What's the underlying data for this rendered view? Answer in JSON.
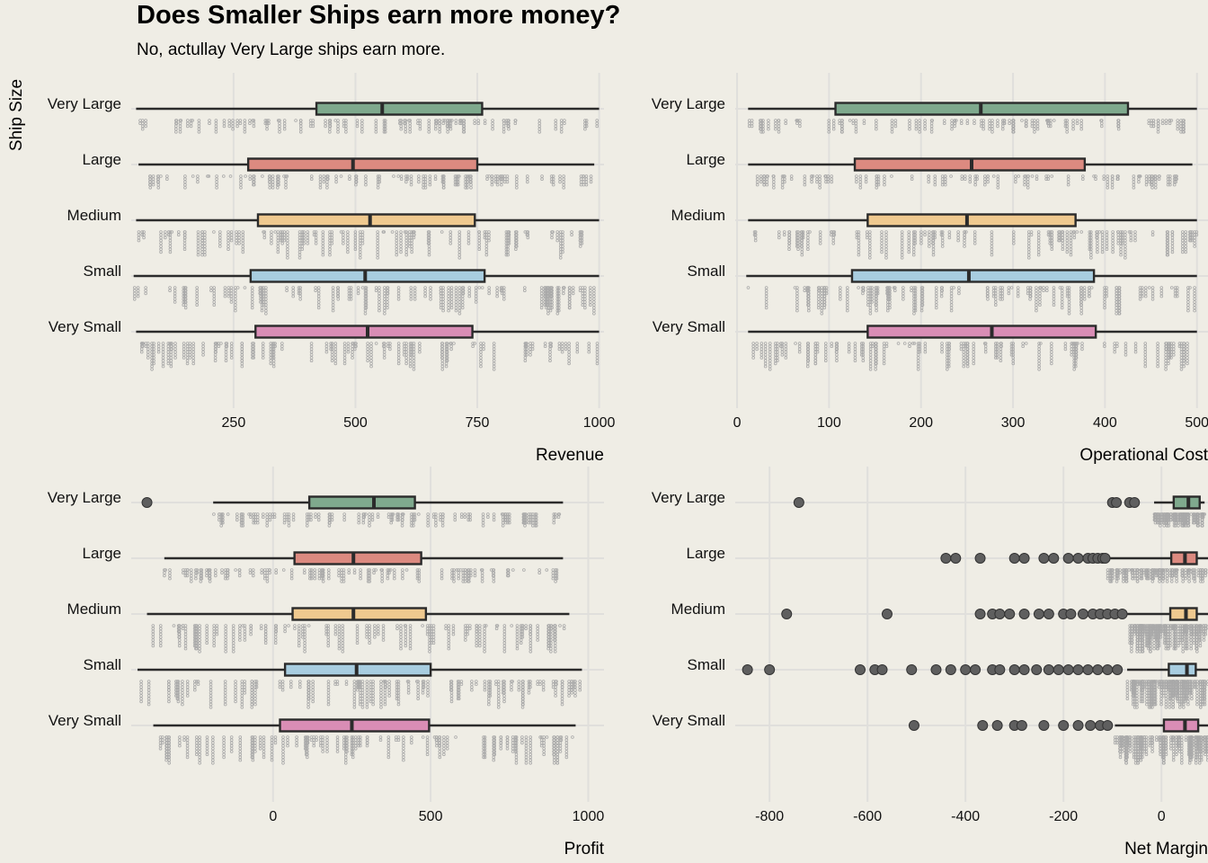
{
  "title": "Does Smaller Ships earn more money?",
  "subtitle": "No, actullay Very Large ships earn more.",
  "ylabel": "Ship Size",
  "colors": {
    "background": "#efede5",
    "grid": "#e0dfdc",
    "whisker": "#2b2b2b",
    "dots": "#a9a9a9",
    "outlier": "#5f5f5f",
    "Very Large": "#7fa98d",
    "Large": "#dc8a80",
    "Medium": "#efc98f",
    "Small": "#a8cde0",
    "Very Small": "#d98db5"
  },
  "chart_data": [
    {
      "type": "boxplot",
      "xlabel": "Revenue",
      "ylabel": "Ship Size",
      "xlim": [
        40,
        1010
      ],
      "xticks": [
        250,
        500,
        750,
        1000
      ],
      "grid": true,
      "categories": [
        "Very Large",
        "Large",
        "Medium",
        "Small",
        "Very Small"
      ],
      "boxes": [
        {
          "name": "Very Large",
          "min": 50,
          "q1": 420,
          "median": 555,
          "q3": 760,
          "max": 1000
        },
        {
          "name": "Large",
          "min": 55,
          "q1": 280,
          "median": 495,
          "q3": 750,
          "max": 990
        },
        {
          "name": "Medium",
          "min": 50,
          "q1": 300,
          "median": 530,
          "q3": 745,
          "max": 1000
        },
        {
          "name": "Small",
          "min": 45,
          "q1": 285,
          "median": 520,
          "q3": 765,
          "max": 1000
        },
        {
          "name": "Very Small",
          "min": 50,
          "q1": 295,
          "median": 525,
          "q3": 740,
          "max": 1000
        }
      ]
    },
    {
      "type": "boxplot",
      "xlabel": "Operational Cost",
      "ylabel": "Ship Size",
      "xlim": [
        -2,
        512
      ],
      "xticks": [
        0,
        100,
        200,
        300,
        400,
        500
      ],
      "grid": true,
      "categories": [
        "Very Large",
        "Large",
        "Medium",
        "Small",
        "Very Small"
      ],
      "boxes": [
        {
          "name": "Very Large",
          "min": 12,
          "q1": 107,
          "median": 265,
          "q3": 425,
          "max": 500
        },
        {
          "name": "Large",
          "min": 12,
          "q1": 128,
          "median": 255,
          "q3": 378,
          "max": 495
        },
        {
          "name": "Medium",
          "min": 12,
          "q1": 142,
          "median": 250,
          "q3": 368,
          "max": 500
        },
        {
          "name": "Small",
          "min": 10,
          "q1": 125,
          "median": 252,
          "q3": 388,
          "max": 500
        },
        {
          "name": "Very Small",
          "min": 12,
          "q1": 142,
          "median": 277,
          "q3": 390,
          "max": 500
        }
      ]
    },
    {
      "type": "boxplot",
      "xlabel": "Profit",
      "ylabel": "Ship Size",
      "xlim": [
        -450,
        1050
      ],
      "xticks": [
        0,
        500,
        1000
      ],
      "grid": true,
      "categories": [
        "Very Large",
        "Large",
        "Medium",
        "Small",
        "Very Small"
      ],
      "boxes": [
        {
          "name": "Very Large",
          "min": -190,
          "q1": 115,
          "median": 320,
          "q3": 450,
          "max": 920,
          "outliers": [
            -400
          ]
        },
        {
          "name": "Large",
          "min": -345,
          "q1": 68,
          "median": 255,
          "q3": 470,
          "max": 920
        },
        {
          "name": "Medium",
          "min": -400,
          "q1": 62,
          "median": 255,
          "q3": 485,
          "max": 940
        },
        {
          "name": "Small",
          "min": -430,
          "q1": 38,
          "median": 265,
          "q3": 500,
          "max": 980
        },
        {
          "name": "Very Small",
          "min": -380,
          "q1": 22,
          "median": 250,
          "q3": 495,
          "max": 960
        }
      ]
    },
    {
      "type": "boxplot",
      "xlabel": "Net Margin",
      "ylabel": "Ship Size",
      "xlim": [
        -870,
        95
      ],
      "xticks": [
        -800,
        -600,
        -400,
        -200,
        0
      ],
      "grid": true,
      "categories": [
        "Very Large",
        "Large",
        "Medium",
        "Small",
        "Very Small"
      ],
      "boxes": [
        {
          "name": "Very Large",
          "min": -15,
          "q1": 25,
          "median": 55,
          "q3": 78,
          "max": 88,
          "outliers": [
            -740,
            -100,
            -92,
            -65,
            -55
          ]
        },
        {
          "name": "Large",
          "min": -110,
          "q1": 20,
          "median": 48,
          "q3": 72,
          "max": 95,
          "outliers": [
            -440,
            -420,
            -370,
            -300,
            -280,
            -240,
            -220,
            -190,
            -170,
            -150,
            -140,
            -130,
            -120,
            -115
          ]
        },
        {
          "name": "Medium",
          "min": -70,
          "q1": 18,
          "median": 50,
          "q3": 72,
          "max": 95,
          "outliers": [
            -765,
            -560,
            -370,
            -345,
            -330,
            -310,
            -280,
            -250,
            -230,
            -200,
            -185,
            -160,
            -140,
            -125,
            -110,
            -95,
            -80
          ]
        },
        {
          "name": "Small",
          "min": -70,
          "q1": 15,
          "median": 52,
          "q3": 70,
          "max": 95,
          "outliers": [
            -845,
            -800,
            -615,
            -585,
            -570,
            -510,
            -460,
            -430,
            -400,
            -380,
            -345,
            -330,
            -300,
            -280,
            -255,
            -230,
            -210,
            -190,
            -170,
            -150,
            -130,
            -110,
            -90
          ]
        },
        {
          "name": "Very Small",
          "min": -95,
          "q1": 5,
          "median": 48,
          "q3": 75,
          "max": 95,
          "outliers": [
            -505,
            -365,
            -335,
            -300,
            -285,
            -240,
            -200,
            -170,
            -145,
            -125,
            -110
          ]
        }
      ]
    }
  ]
}
